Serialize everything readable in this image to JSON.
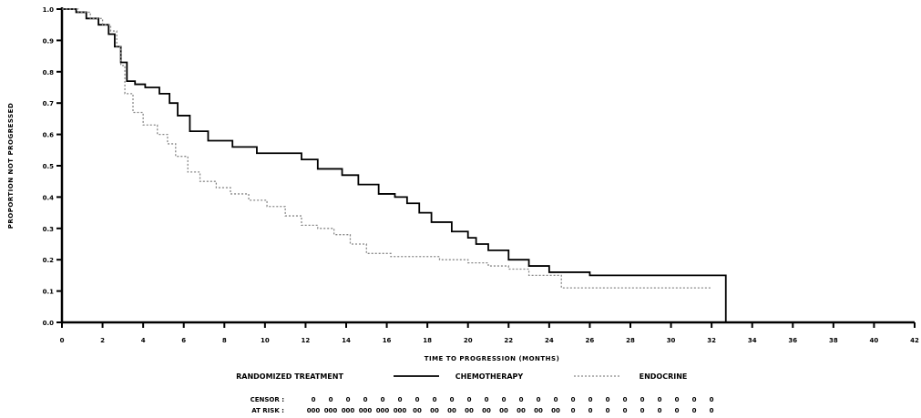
{
  "chart_data": {
    "type": "line",
    "title": "",
    "xlabel": "TIME TO PROGRESSION (MONTHS)",
    "ylabel": "PROPORTION NOT PROGRESSED",
    "xlim": [
      0,
      42
    ],
    "ylim": [
      0,
      1
    ],
    "x_ticks": [
      0,
      2,
      4,
      6,
      8,
      10,
      12,
      14,
      16,
      18,
      20,
      22,
      24,
      26,
      28,
      30,
      32,
      34,
      36,
      38,
      40,
      42
    ],
    "y_ticks": [
      0.0,
      0.1,
      0.2,
      0.3,
      0.4,
      0.5,
      0.6,
      0.7,
      0.8,
      0.9,
      1.0
    ],
    "legend_title": "RANDOMIZED TREATMENT",
    "legend_position": "bottom",
    "series": [
      {
        "name": "CHEMOTHERAPY",
        "style": "solid",
        "color": "#000000",
        "x": [
          0,
          0.7,
          1.2,
          1.8,
          2.3,
          2.6,
          2.9,
          3.2,
          3.6,
          4.1,
          4.8,
          5.3,
          5.7,
          6.3,
          7.2,
          8.4,
          9.6,
          10.8,
          11.2,
          11.8,
          12.6,
          13.8,
          14.6,
          15.6,
          16.4,
          17.0,
          17.6,
          18.2,
          19.2,
          20.0,
          20.4,
          21.0,
          22.0,
          23.0,
          24.0,
          26.0,
          28.0,
          30.0,
          31.2,
          32.4,
          32.7
        ],
        "y": [
          1.0,
          0.99,
          0.97,
          0.95,
          0.92,
          0.88,
          0.83,
          0.77,
          0.76,
          0.75,
          0.73,
          0.7,
          0.66,
          0.61,
          0.58,
          0.56,
          0.54,
          0.54,
          0.54,
          0.52,
          0.49,
          0.47,
          0.44,
          0.41,
          0.4,
          0.38,
          0.35,
          0.32,
          0.29,
          0.27,
          0.25,
          0.23,
          0.2,
          0.18,
          0.16,
          0.15,
          0.15,
          0.15,
          0.15,
          0.15,
          0.0
        ]
      },
      {
        "name": "ENDOCRINE",
        "style": "dotted",
        "color": "#888888",
        "x": [
          0,
          0.8,
          1.4,
          2.0,
          2.4,
          2.7,
          2.9,
          3.1,
          3.5,
          4.0,
          4.7,
          5.2,
          5.6,
          6.2,
          6.8,
          7.6,
          8.3,
          9.2,
          10.1,
          11.0,
          11.8,
          12.6,
          13.4,
          14.2,
          15.0,
          16.2,
          17.4,
          18.6,
          20.0,
          21.0,
          22.0,
          23.0,
          24.0,
          24.6,
          26.0,
          28.0,
          30.0,
          31.0,
          32.0
        ],
        "y": [
          1.0,
          0.99,
          0.97,
          0.95,
          0.93,
          0.88,
          0.82,
          0.73,
          0.67,
          0.63,
          0.6,
          0.57,
          0.53,
          0.48,
          0.45,
          0.43,
          0.41,
          0.39,
          0.37,
          0.34,
          0.31,
          0.3,
          0.28,
          0.25,
          0.22,
          0.21,
          0.21,
          0.2,
          0.19,
          0.18,
          0.17,
          0.15,
          0.15,
          0.11,
          0.11,
          0.11,
          0.11,
          0.11,
          0.11
        ]
      }
    ],
    "risk_table": {
      "rows": [
        {
          "label": "CENSOR :",
          "values": [
            "0",
            "0",
            "0",
            "0",
            "0",
            "0",
            "0",
            "0",
            "0",
            "0",
            "0",
            "0",
            "0",
            "0",
            "0",
            "0",
            "0",
            "0",
            "0",
            "0",
            "0",
            "0",
            "0",
            "0"
          ]
        },
        {
          "label": "AT RISK :",
          "values": [
            "000",
            "000",
            "000",
            "000",
            "000",
            "000",
            "00",
            "00",
            "00",
            "00",
            "00",
            "00",
            "00",
            "00",
            "00",
            "0",
            "0",
            "0",
            "0",
            "0",
            "0",
            "0",
            "0",
            "0"
          ]
        }
      ]
    }
  }
}
